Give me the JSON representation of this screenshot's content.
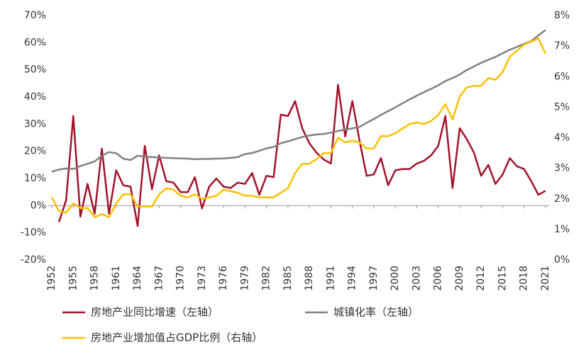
{
  "chart_data": {
    "type": "line",
    "x": [
      1952,
      1953,
      1954,
      1955,
      1956,
      1957,
      1958,
      1959,
      1960,
      1961,
      1962,
      1963,
      1964,
      1965,
      1966,
      1967,
      1968,
      1969,
      1970,
      1971,
      1972,
      1973,
      1974,
      1975,
      1976,
      1977,
      1978,
      1979,
      1980,
      1981,
      1982,
      1983,
      1984,
      1985,
      1986,
      1987,
      1988,
      1989,
      1990,
      1991,
      1992,
      1993,
      1994,
      1995,
      1996,
      1997,
      1998,
      1999,
      2000,
      2001,
      2002,
      2003,
      2004,
      2005,
      2006,
      2007,
      2008,
      2009,
      2010,
      2011,
      2012,
      2013,
      2014,
      2015,
      2016,
      2017,
      2018,
      2019,
      2020,
      2021
    ],
    "xlim": [
      1952,
      2021
    ],
    "xticks": [
      1952,
      1955,
      1958,
      1961,
      1964,
      1967,
      1970,
      1973,
      1976,
      1979,
      1982,
      1985,
      1988,
      1991,
      1994,
      1997,
      2000,
      2003,
      2006,
      2009,
      2012,
      2015,
      2018,
      2021
    ],
    "ylim": [
      -20,
      70
    ],
    "yticks": [
      {
        "value": -20,
        "label": "-20%"
      },
      {
        "value": -10,
        "label": "-10%"
      },
      {
        "value": 0,
        "label": "0%"
      },
      {
        "value": 10,
        "label": "10%"
      },
      {
        "value": 20,
        "label": "20%"
      },
      {
        "value": 30,
        "label": "30%"
      },
      {
        "value": 40,
        "label": "40%"
      },
      {
        "value": 50,
        "label": "50%"
      },
      {
        "value": 60,
        "label": "60%"
      },
      {
        "value": 70,
        "label": "70%"
      }
    ],
    "y2lim": [
      0,
      8
    ],
    "y2ticks": [
      {
        "value": 0,
        "label": "0%"
      },
      {
        "value": 1,
        "label": "1%"
      },
      {
        "value": 2,
        "label": "2%"
      },
      {
        "value": 3,
        "label": "3%"
      },
      {
        "value": 4,
        "label": "4%"
      },
      {
        "value": 5,
        "label": "5%"
      },
      {
        "value": 6,
        "label": "6%"
      },
      {
        "value": 7,
        "label": "7%"
      },
      {
        "value": 8,
        "label": "8%"
      }
    ],
    "legend": "bottom",
    "series": [
      {
        "name": "房地产业同比增速（左轴）",
        "color": "#a3122a",
        "axis": "y",
        "values": [
          null,
          -6,
          2,
          33,
          -4,
          8,
          -3,
          21,
          -3,
          13,
          7.5,
          7,
          -7.5,
          22,
          6,
          18.5,
          9,
          8.5,
          5,
          5,
          10.5,
          -1,
          7,
          10,
          7,
          6.5,
          8.5,
          8,
          12,
          4,
          11,
          10.5,
          33.5,
          33,
          38.5,
          28.5,
          23,
          19.5,
          17,
          15.5,
          44.5,
          25.5,
          38.5,
          24,
          11,
          11.5,
          17.5,
          7.5,
          13,
          13.5,
          13.5,
          15.5,
          16.5,
          18.5,
          22,
          33,
          6.5,
          28.5,
          24.5,
          19.5,
          11,
          15,
          8,
          11.5,
          17.5,
          14.5,
          13.5,
          9,
          4,
          5.5
        ]
      },
      {
        "name": "城镇化率（左轴）",
        "color": "#808080",
        "axis": "y",
        "values": [
          12.5,
          13.3,
          13.7,
          13.5,
          14.6,
          15.4,
          16.3,
          18.4,
          19.7,
          19.3,
          17.3,
          16.8,
          18.4,
          18,
          17.9,
          17.7,
          17.6,
          17.5,
          17.4,
          17.3,
          17.1,
          17.2,
          17.2,
          17.3,
          17.4,
          17.6,
          17.9,
          19,
          19.4,
          20.2,
          21.1,
          21.6,
          23,
          23.7,
          24.5,
          25.3,
          25.8,
          26.2,
          26.4,
          26.9,
          27.5,
          28,
          28.5,
          29,
          30.5,
          31.9,
          33.4,
          34.8,
          36.2,
          37.7,
          39.1,
          40.5,
          41.8,
          43,
          44.3,
          45.9,
          47,
          48.3,
          50,
          51.3,
          52.6,
          53.7,
          54.8,
          56.1,
          57.4,
          58.5,
          59.6,
          60.6,
          62.7,
          64.7
        ]
      },
      {
        "name": "房地产业增加值占GDP比例（右轴）",
        "color": "#ffc000",
        "axis": "y2",
        "values": [
          2.05,
          1.6,
          1.55,
          1.85,
          1.7,
          1.7,
          1.4,
          1.5,
          1.4,
          1.85,
          2.15,
          2.15,
          1.75,
          1.75,
          1.75,
          2.15,
          2.35,
          2.3,
          2.1,
          2.05,
          2.15,
          2,
          2.05,
          2.1,
          2.3,
          2.25,
          2.2,
          2.1,
          2.1,
          2.05,
          2.05,
          2.05,
          2.2,
          2.35,
          2.85,
          3.15,
          3.15,
          3.3,
          3.5,
          3.5,
          4,
          3.85,
          3.9,
          3.85,
          3.65,
          3.65,
          4.05,
          4.05,
          4.15,
          4.3,
          4.45,
          4.5,
          4.45,
          4.55,
          4.75,
          5.1,
          4.6,
          5.35,
          5.65,
          5.7,
          5.7,
          5.95,
          5.9,
          6.15,
          6.65,
          6.85,
          7.05,
          7.15,
          7.25,
          6.75
        ]
      }
    ]
  }
}
